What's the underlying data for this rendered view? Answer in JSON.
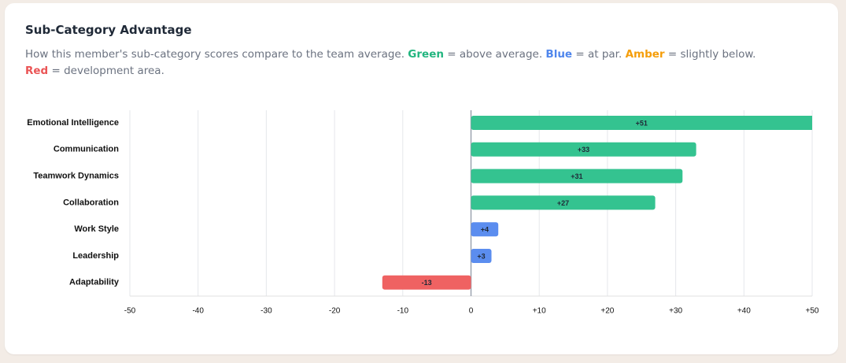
{
  "chart_data": {
    "type": "bar",
    "orientation": "horizontal",
    "title": "Sub-Category Advantage",
    "subtitle": [
      {
        "text": "How this member's sub-category scores compare to the team average. "
      },
      {
        "text": "Green",
        "color": "#22b57f"
      },
      {
        "text": " = above average. "
      },
      {
        "text": "Blue",
        "color": "#4f86ec"
      },
      {
        "text": " = at par. "
      },
      {
        "text": "Amber",
        "color": "#f59e0b"
      },
      {
        "text": " = slightly below. "
      },
      {
        "text": "Red",
        "color": "#ea5455"
      },
      {
        "text": " = development area."
      }
    ],
    "categories": [
      "Emotional Intelligence",
      "Communication",
      "Teamwork Dynamics",
      "Collaboration",
      "Work Style",
      "Leadership",
      "Adaptability"
    ],
    "values": [
      51,
      33,
      31,
      27,
      4,
      3,
      -13
    ],
    "value_labels": [
      "+51",
      "+33",
      "+31",
      "+27",
      "+4",
      "+3",
      "-13"
    ],
    "colors": [
      "#34c390",
      "#34c390",
      "#34c390",
      "#34c390",
      "#5b8def",
      "#5b8def",
      "#ef6262"
    ],
    "xlim": [
      -50,
      50
    ],
    "xticks": [
      -50,
      -40,
      -30,
      -20,
      -10,
      0,
      {
        "value": 10,
        "label": "+10"
      },
      {
        "value": 20,
        "label": "+20"
      },
      {
        "value": 30,
        "label": "+30"
      },
      {
        "value": 40,
        "label": "+40"
      },
      {
        "value": 50,
        "label": "+50"
      }
    ],
    "grid": true
  }
}
